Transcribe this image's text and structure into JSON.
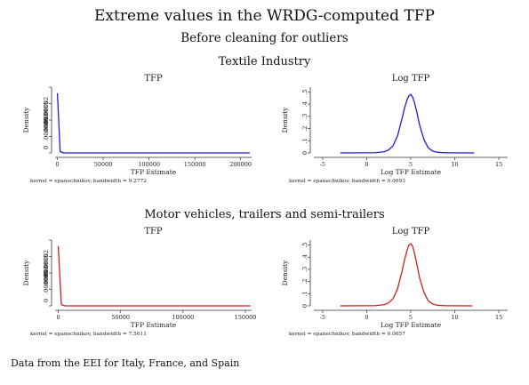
{
  "title": "Extreme values in the WRDG-computed TFP",
  "subtitle": "Before cleaning for outliers",
  "footer": "Data from the EEI for Italy, France, and Spain",
  "sections": [
    {
      "label": "Textile Industry"
    },
    {
      "label": "Motor vehicles, trailers and semi-trailers"
    }
  ],
  "chart_data": [
    {
      "type": "line",
      "title": "TFP",
      "xlabel": "TFP Estimate",
      "ylabel": "Density",
      "note": "kernel = epanechnikov, bandwidth = 9.2772",
      "xlim": [
        -2500,
        212000
      ],
      "ylim": [
        0,
        2.2e-05
      ],
      "x_ticks": [
        0,
        50000,
        100000,
        150000,
        200000
      ],
      "x_tick_labels": [
        "0",
        "50000",
        "100000",
        "150000",
        "200000"
      ],
      "y_tick_labels": [
        "0",
        ".000005",
        ".00001",
        ".000015",
        ".00002"
      ],
      "color": "#1f1fd0",
      "series": [
        {
          "x": [
            0,
            3000,
            7000,
            210000
          ],
          "y": [
            2e-05,
            4e-07,
            0,
            0
          ]
        }
      ]
    },
    {
      "type": "line",
      "title": "Log TFP",
      "xlabel": "Log TFP Estimate",
      "ylabel": "Density",
      "note": "kernel = epanechnikov, bandwidth = 0.0693",
      "xlim": [
        -6,
        16
      ],
      "ylim": [
        0,
        0.54
      ],
      "x_ticks": [
        -5,
        0,
        5,
        10,
        15
      ],
      "x_tick_labels": [
        "-5",
        "0",
        "5",
        "10",
        "15"
      ],
      "y_ticks": [
        0,
        0.1,
        0.2,
        0.3,
        0.4,
        0.5
      ],
      "y_tick_labels": [
        "0",
        ".1",
        ".2",
        ".3",
        ".4",
        ".5"
      ],
      "color": "#1f1fd0",
      "series": [
        {
          "x": [
            -3,
            1,
            2,
            2.5,
            3,
            3.5,
            4,
            4.3,
            4.6,
            4.8,
            5,
            5.2,
            5.4,
            5.7,
            6,
            6.5,
            7,
            7.5,
            8,
            9,
            12.2
          ],
          "y": [
            0,
            0.002,
            0.01,
            0.025,
            0.06,
            0.14,
            0.28,
            0.37,
            0.44,
            0.47,
            0.48,
            0.46,
            0.42,
            0.33,
            0.23,
            0.11,
            0.04,
            0.015,
            0.005,
            0.001,
            0
          ]
        }
      ]
    },
    {
      "type": "line",
      "title": "TFP",
      "xlabel": "TFP Estimate",
      "ylabel": "Density",
      "note": "kernel = epanechnikov, bandwidth = 7.5611",
      "xlim": [
        -2500,
        155000
      ],
      "ylim": [
        0,
        2.2e-05
      ],
      "x_ticks": [
        0,
        50000,
        100000,
        150000
      ],
      "x_tick_labels": [
        "0",
        "50000",
        "100000",
        "150000"
      ],
      "y_tick_labels": [
        "0",
        ".000005",
        ".00001",
        ".000015",
        ".00002"
      ],
      "color": "#d01f1f",
      "series": [
        {
          "x": [
            0,
            2500,
            5500,
            154000
          ],
          "y": [
            2e-05,
            4e-07,
            0,
            0
          ]
        }
      ]
    },
    {
      "type": "line",
      "title": "Log TFP",
      "xlabel": "Log TFP Estimate",
      "ylabel": "Density",
      "note": "kernel = epanechnikov, bandwidth = 0.0657",
      "xlim": [
        -6,
        16
      ],
      "ylim": [
        0,
        0.54
      ],
      "x_ticks": [
        -5,
        0,
        5,
        10,
        15
      ],
      "x_tick_labels": [
        "-5",
        "0",
        "5",
        "10",
        "15"
      ],
      "y_ticks": [
        0,
        0.1,
        0.2,
        0.3,
        0.4,
        0.5
      ],
      "y_tick_labels": [
        "0",
        ".1",
        ".2",
        ".3",
        ".4",
        ".5"
      ],
      "color": "#d01f1f",
      "series": [
        {
          "x": [
            -3,
            1,
            2,
            2.5,
            3,
            3.5,
            4,
            4.3,
            4.6,
            4.8,
            5,
            5.2,
            5.4,
            5.7,
            6,
            6.5,
            7,
            7.5,
            8,
            9,
            12
          ],
          "y": [
            0,
            0.002,
            0.01,
            0.025,
            0.06,
            0.14,
            0.28,
            0.38,
            0.46,
            0.5,
            0.51,
            0.49,
            0.44,
            0.34,
            0.23,
            0.11,
            0.04,
            0.015,
            0.005,
            0.001,
            0
          ]
        }
      ]
    }
  ]
}
